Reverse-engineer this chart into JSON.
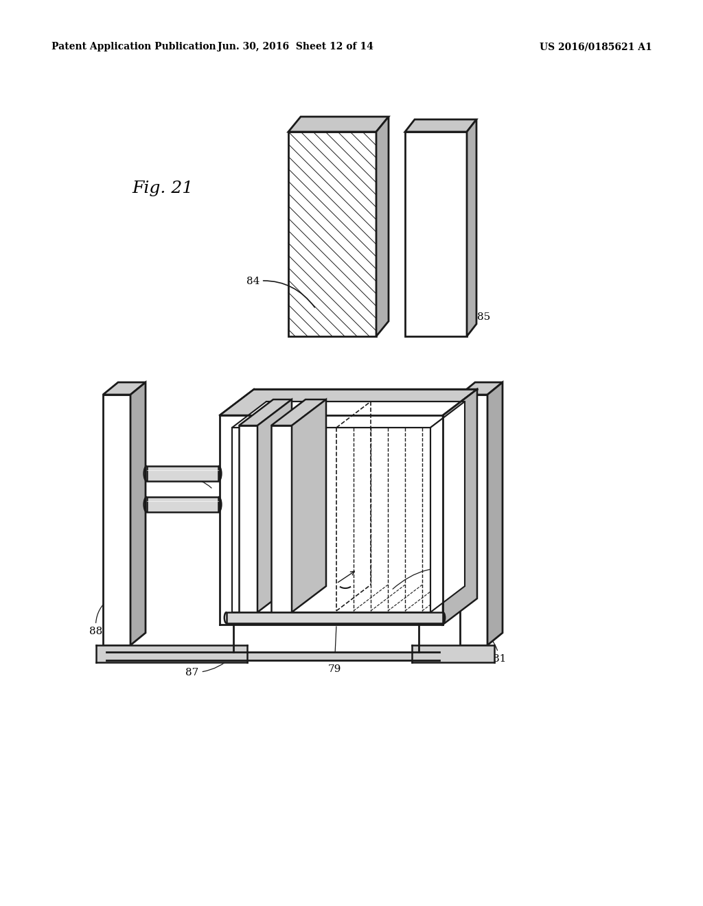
{
  "bg_color": "#ffffff",
  "header_left": "Patent Application Publication",
  "header_center": "Jun. 30, 2016  Sheet 12 of 14",
  "header_right": "US 2016/0185621 A1",
  "fig_label": "Fig. 21",
  "header_fontsize": 10,
  "fig_label_fontsize": 18,
  "label_fontsize": 11
}
